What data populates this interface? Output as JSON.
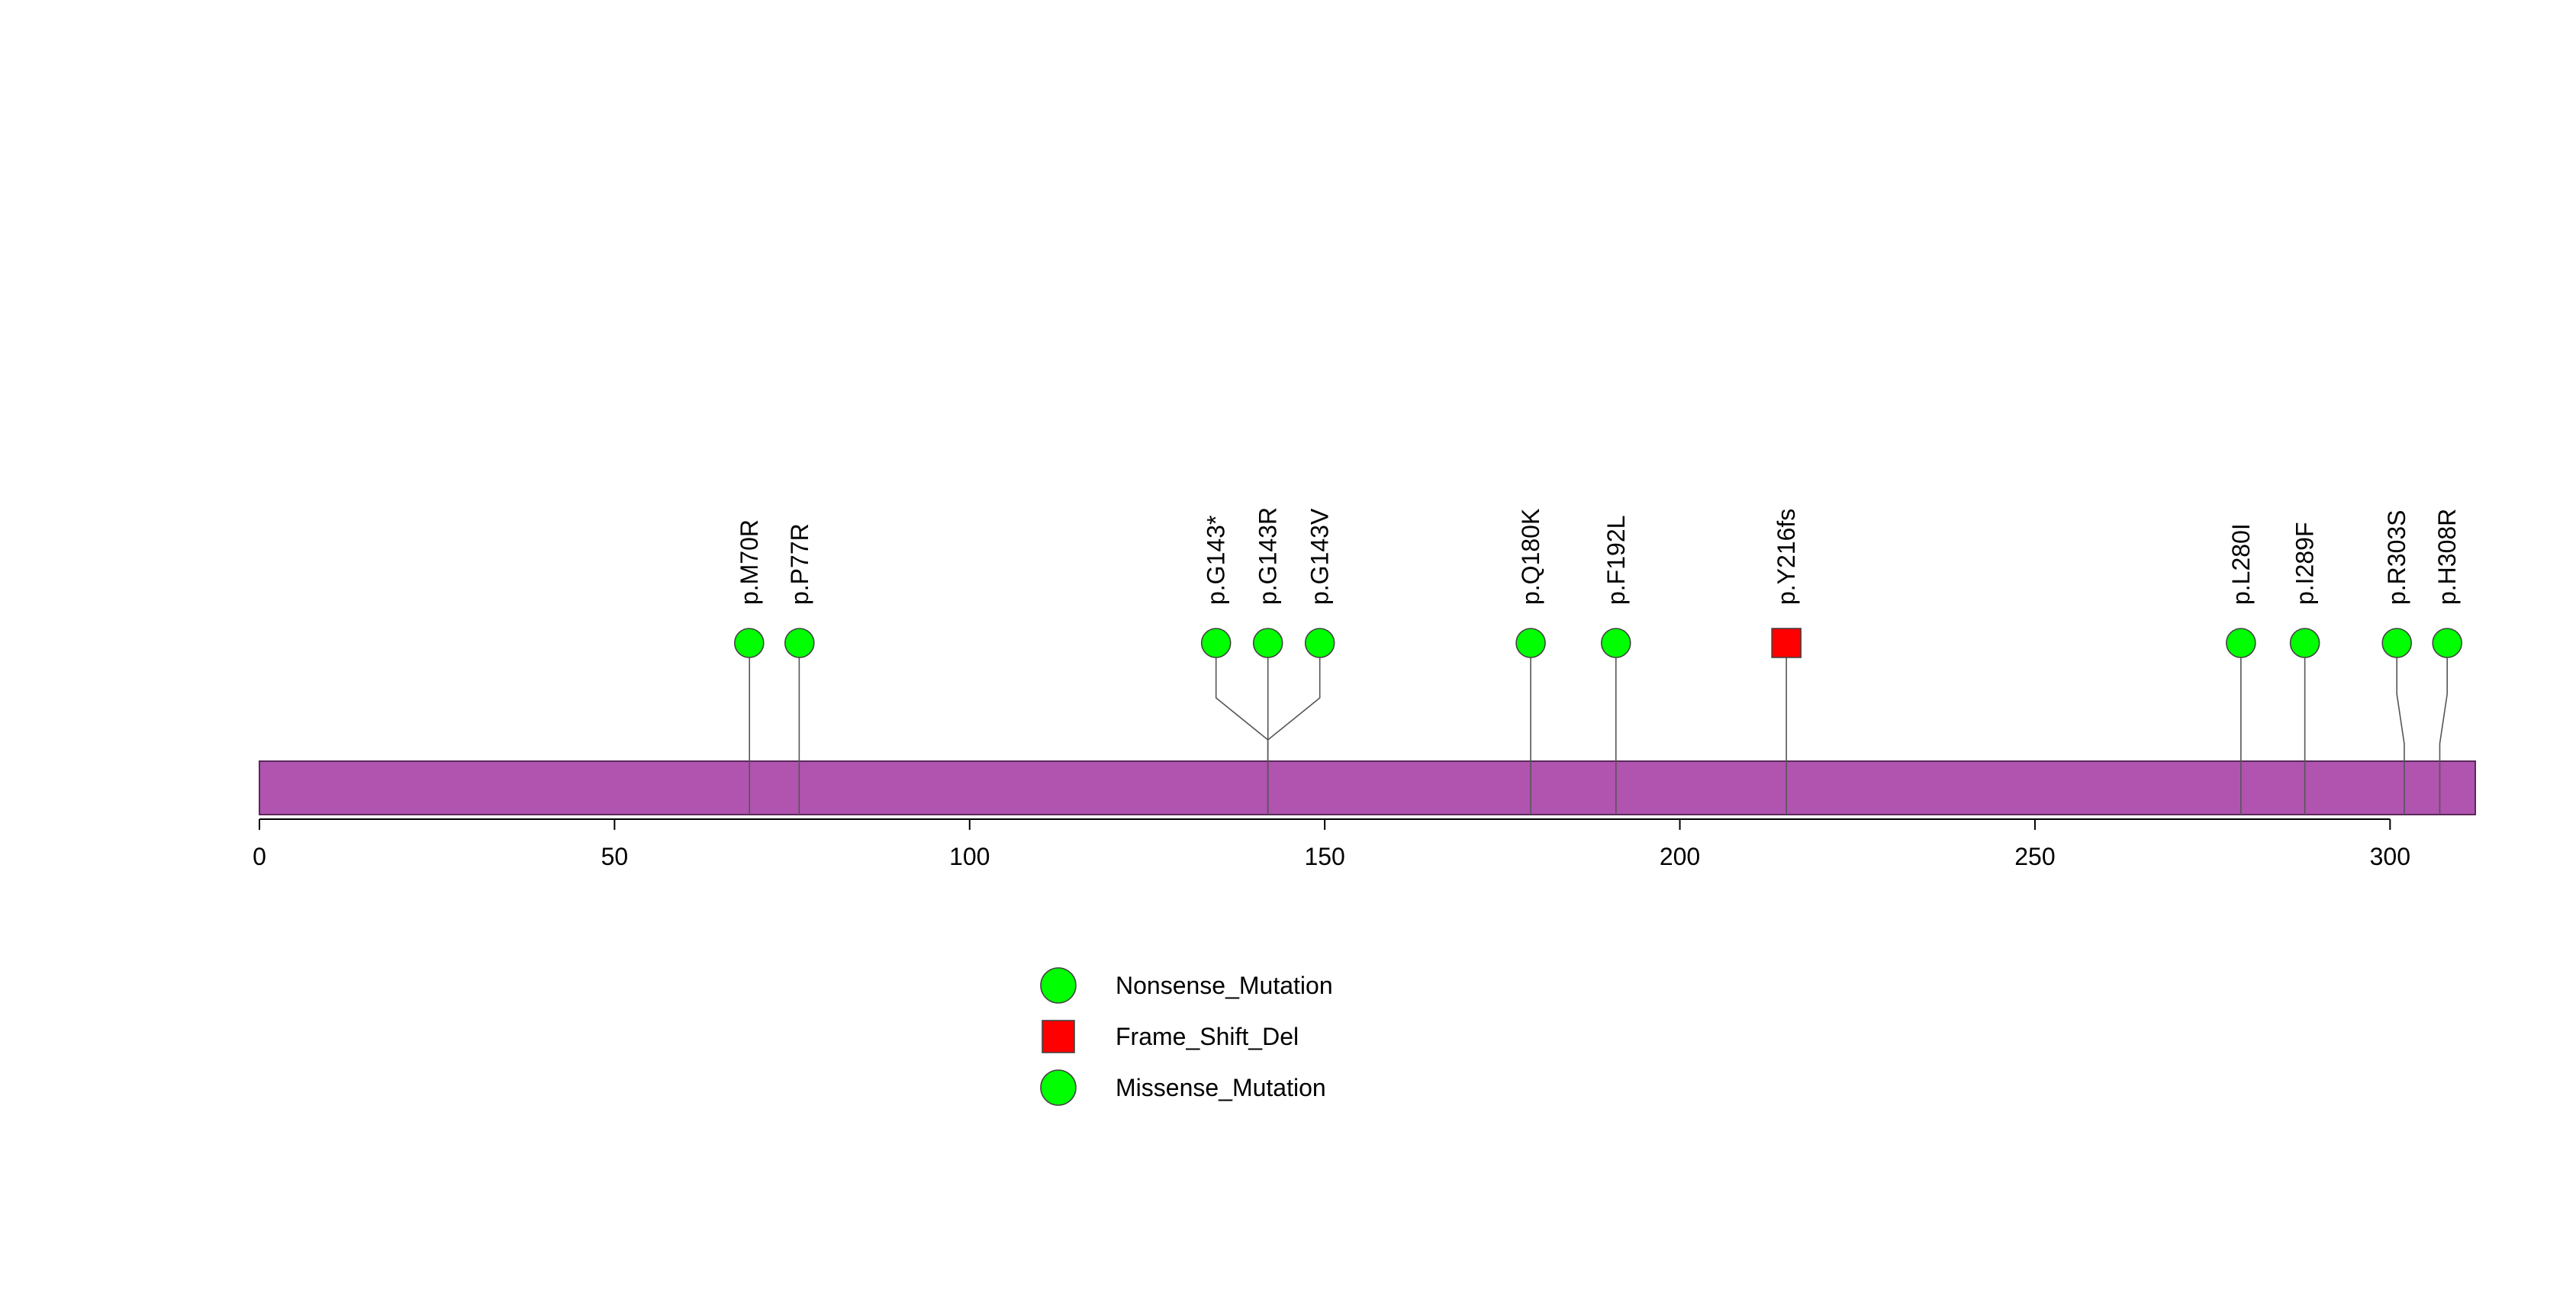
{
  "chart_data": {
    "type": "lollipop",
    "protein_length": 312,
    "domain_color": "#b054b0",
    "x_ticks": [
      0,
      50,
      100,
      150,
      200,
      250,
      300
    ],
    "mutations": [
      {
        "label": "p.M70R",
        "position": 69,
        "type": "Missense_Mutation"
      },
      {
        "label": "p.P77R",
        "position": 76,
        "type": "Missense_Mutation"
      },
      {
        "label": "p.G143*",
        "position": 142,
        "type": "Nonsense_Mutation"
      },
      {
        "label": "p.G143R",
        "position": 142,
        "type": "Missense_Mutation"
      },
      {
        "label": "p.G143V",
        "position": 142,
        "type": "Missense_Mutation"
      },
      {
        "label": "p.Q180K",
        "position": 179,
        "type": "Missense_Mutation"
      },
      {
        "label": "p.F192L",
        "position": 191,
        "type": "Missense_Mutation"
      },
      {
        "label": "p.Y216fs",
        "position": 215,
        "type": "Frame_Shift_Del"
      },
      {
        "label": "p.L280I",
        "position": 279,
        "type": "Missense_Mutation"
      },
      {
        "label": "p.I289F",
        "position": 288,
        "type": "Missense_Mutation"
      },
      {
        "label": "p.R303S",
        "position": 302,
        "type": "Missense_Mutation"
      },
      {
        "label": "p.H308R",
        "position": 307,
        "type": "Missense_Mutation"
      }
    ],
    "legend": [
      {
        "label": "Nonsense_Mutation",
        "shape": "circle",
        "color": "#00ff00"
      },
      {
        "label": "Frame_Shift_Del",
        "shape": "square",
        "color": "#ff0000"
      },
      {
        "label": "Missense_Mutation",
        "shape": "circle",
        "color": "#00ff00"
      }
    ]
  }
}
